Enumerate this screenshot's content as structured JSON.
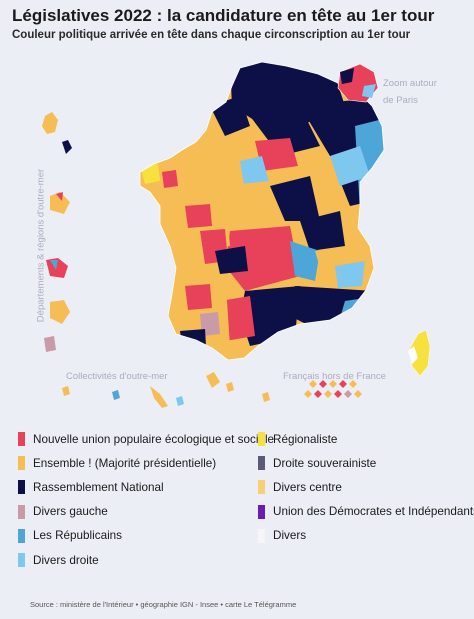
{
  "title": "Législatives 2022 : la candidature en tête au 1er tour",
  "subtitle": "Couleur politique arrivée en tête dans chaque circonscription au 1er tour",
  "map": {
    "zoom_label_line1": "Zoom autour",
    "zoom_label_line2": "de Paris",
    "overseas_departments_label": "Départements & régions d'outre-mer",
    "collectivites_label": "Collectivités d'outre-mer",
    "french_abroad_label": "Français hors de France"
  },
  "colors": {
    "nupes": "#e8415a",
    "ensemble": "#f5bd54",
    "rn": "#0d1046",
    "divers_gauche": "#c99aa8",
    "lr": "#4ea6d8",
    "divers_droite": "#7ec8f0",
    "regionaliste": "#f7e13e",
    "droite_souverainiste": "#5a5a78",
    "divers_centre": "#f8cf76",
    "udi": "#6b1cb8",
    "divers": "#f6f6f6"
  },
  "legend": [
    {
      "label": "Nouvelle union populaire écologique et sociale",
      "color": "#e8415a"
    },
    {
      "label": "Ensemble ! (Majorité présidentielle)",
      "color": "#f5bd54"
    },
    {
      "label": "Rassemblement National",
      "color": "#0d1046"
    },
    {
      "label": "Divers gauche",
      "color": "#c99aa8"
    },
    {
      "label": "Les Républicains",
      "color": "#4ea6d8"
    },
    {
      "label": "Divers droite",
      "color": "#7ec8f0"
    },
    {
      "label": "Régionaliste",
      "color": "#f7e13e"
    },
    {
      "label": "Droite souverainiste",
      "color": "#5a5a78"
    },
    {
      "label": "Divers centre",
      "color": "#f8cf76"
    },
    {
      "label": "Union des Démocrates et Indépendants",
      "color": "#6b1cb8"
    },
    {
      "label": "Divers",
      "color": "#f6f6f6"
    }
  ],
  "source": "Source : ministère de l'Intérieur • géographie IGN - Insee • carte Le Télégramme"
}
